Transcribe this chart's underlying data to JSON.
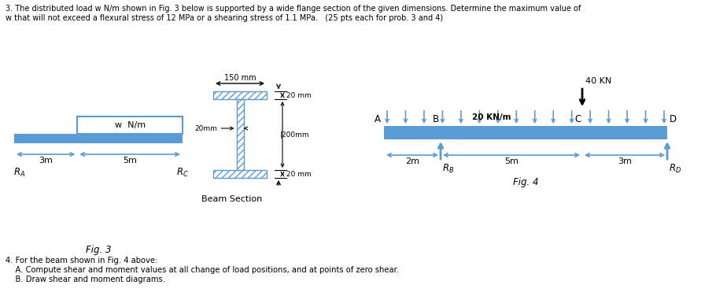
{
  "title_line1": "3. The distributed load w N/m shown in Fig. 3 below is supported by a wide flange section of the given dimensions. Determine the maximum value of",
  "title_line2": "w that will not exceed a flexural stress of 12 MPa or a shearing stress of 1.1 MPa.   (25 pts each for prob. 3 and 4)",
  "footer_line1": "4. For the beam shown in Fig. 4 above:",
  "footer_line2": "    A. Compute shear and moment values at all change of load positions, and at points of zero shear.",
  "footer_line3": "    B. Draw shear and moment diagrams.",
  "beam_color": "#5b9bd5",
  "fig3_label": "Fig. 3",
  "fig4_label": "Fig. 4",
  "beam_section_label": "Beam Section"
}
